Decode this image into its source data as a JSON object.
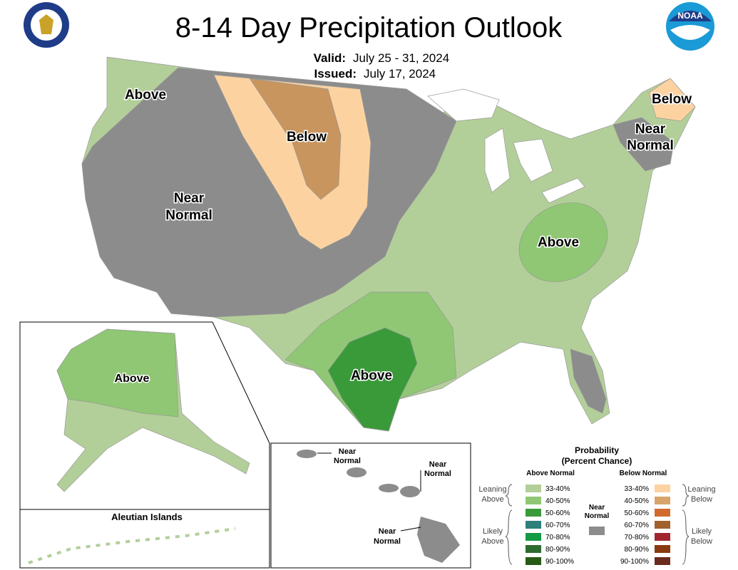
{
  "header": {
    "title": "8-14 Day Precipitation Outlook",
    "valid_label": "Valid:",
    "valid": "July 25 - 31, 2024",
    "issued_label": "Issued:",
    "issued": "July 17, 2024",
    "noaa_logo": "NOAA"
  },
  "map_labels": {
    "northwest": [
      "Above"
    ],
    "northern_plains": [
      "Below"
    ],
    "west": [
      "Near",
      "Normal"
    ],
    "maine": [
      "Below"
    ],
    "new_england": [
      "Near",
      "Normal"
    ],
    "appalachia": [
      "Above"
    ],
    "texas": [
      "Above"
    ]
  },
  "insets": {
    "alaska": [
      "Above"
    ],
    "aleutian": "Aleutian Islands",
    "hawaii": [
      [
        "Near",
        "Normal"
      ],
      [
        "Near",
        "Normal"
      ],
      [
        "Near",
        "Normal"
      ]
    ]
  },
  "legend": {
    "title": "Probability",
    "subtitle": "(Percent Chance)",
    "above_header": "Above Normal",
    "below_header": "Below Normal",
    "leaning_above": [
      "Leaning",
      "Above"
    ],
    "likely_above": [
      "Likely",
      "Above"
    ],
    "near_normal": [
      "Near",
      "Normal"
    ],
    "leaning_below": [
      "Leaning",
      "Below"
    ],
    "likely_below": [
      "Likely",
      "Below"
    ],
    "above_ranges": [
      "33-40%",
      "40-50%",
      "50-60%",
      "60-70%",
      "70-80%",
      "80-90%",
      "90-100%"
    ],
    "below_ranges": [
      "33-40%",
      "40-50%",
      "50-60%",
      "60-70%",
      "70-80%",
      "80-90%",
      "90-100%"
    ]
  }
}
